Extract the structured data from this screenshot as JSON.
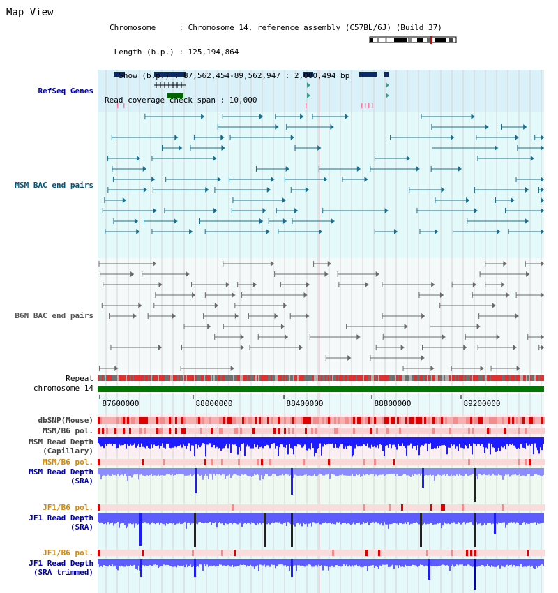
{
  "view_title": "Map View",
  "header": {
    "chromosome_line": "Chromosome     : Chromosome 14, reference assembly (C57BL/6J) (Build 37)",
    "length_line": " Length (b.p.) : 125,194,864",
    "show_line": "  Show (b.p.) : 87,562,454-89,562,947 : 2,000,494 bp",
    "coverage_line": "Read coverage check span : 10,000"
  },
  "tracks": {
    "refseq": "RefSeq Genes",
    "msm_bac": "MSM BAC end pairs",
    "b6n_bac": "B6N BAC end pairs",
    "repeat": "Repeat",
    "chromosome": "chromosome 14",
    "dbsnp": "dbSNP(Mouse)",
    "msm_b6_pol_1": "MSM/B6 pol.",
    "msm_depth_cap_1": "MSM Read Depth",
    "msm_depth_cap_2": "(Capillary)",
    "msm_b6_pol_2": "MSM/B6 pol.",
    "msm_depth_sra_1": "MSM Read Depth",
    "msm_depth_sra_2": "(SRA)",
    "jf1_b6_pol_1": "JF1/B6 pol.",
    "jf1_depth_sra_1": "JF1 Read Depth",
    "jf1_depth_sra_2": "(SRA)",
    "jf1_b6_pol_2": "JF1/B6 pol.",
    "jf1_depth_trim_1": "JF1 Read Depth",
    "jf1_depth_trim_2": "(SRA trimmed)"
  },
  "axis_ticks": [
    "87600000",
    "88000000",
    "88400000",
    "88800000",
    "89200000"
  ],
  "colors": {
    "refseq_bg": "#daf1fa",
    "bac_bg": "#e4fafa",
    "b6n_bg": "#f4f9fa",
    "chromosome_bar": "#007700",
    "repeat_red": "#e03030",
    "repeat_gray": "#707070",
    "msm_bac_line": "#1a6f8f",
    "b6n_bac_line": "#6a6a6a",
    "depth_blue": "#1c1cff",
    "depth_light_blue": "#8c8cff",
    "pol_pink": "#f7c8c8",
    "dbsnp_red": "#f06060"
  }
}
